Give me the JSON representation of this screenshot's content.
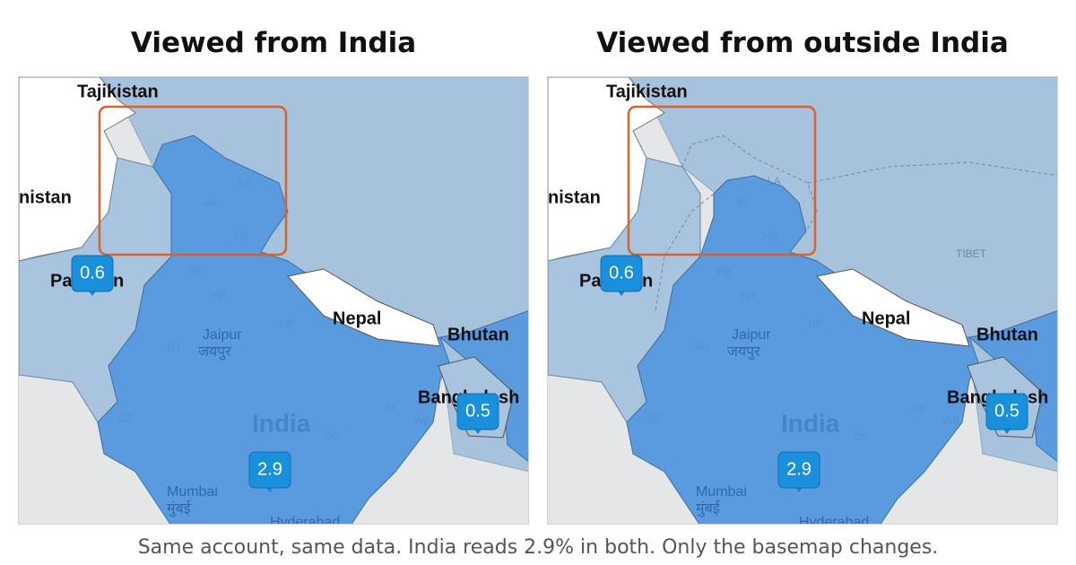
{
  "panels": [
    {
      "title": "Viewed from India",
      "labels": [
        "Tajikistan",
        "nistan",
        "Pakistan",
        "Nepal",
        "Bhutan",
        "Bangladesh",
        "India",
        "Jaipur",
        "जयपुर",
        "Mumbai",
        "मुंबई",
        "Hyderabad",
        "LA",
        "JK",
        "HP",
        "PB",
        "HR",
        "UP",
        "RJ",
        "GJ",
        "JH",
        "WB",
        "CG"
      ],
      "markers": [
        0.6,
        0.5,
        2.9
      ]
    },
    {
      "title": "Viewed from outside India",
      "labels": [
        "Tajikistan",
        "nistan",
        "Pakistan",
        "Nepal",
        "Bhutan",
        "Bangladesh",
        "India",
        "Jaipur",
        "जयपुर",
        "Mumbai",
        "मुंबई",
        "Hyderabad",
        "LA",
        "JK",
        "HP",
        "PB",
        "HR",
        "UP",
        "RJ",
        "GJ",
        "JH",
        "WB",
        "CG",
        "TIBET"
      ],
      "markers": [
        0.6,
        0.5,
        2.9
      ]
    }
  ],
  "caption": "Same account, same data. India reads 2.9% in both. Only the basemap changes."
}
